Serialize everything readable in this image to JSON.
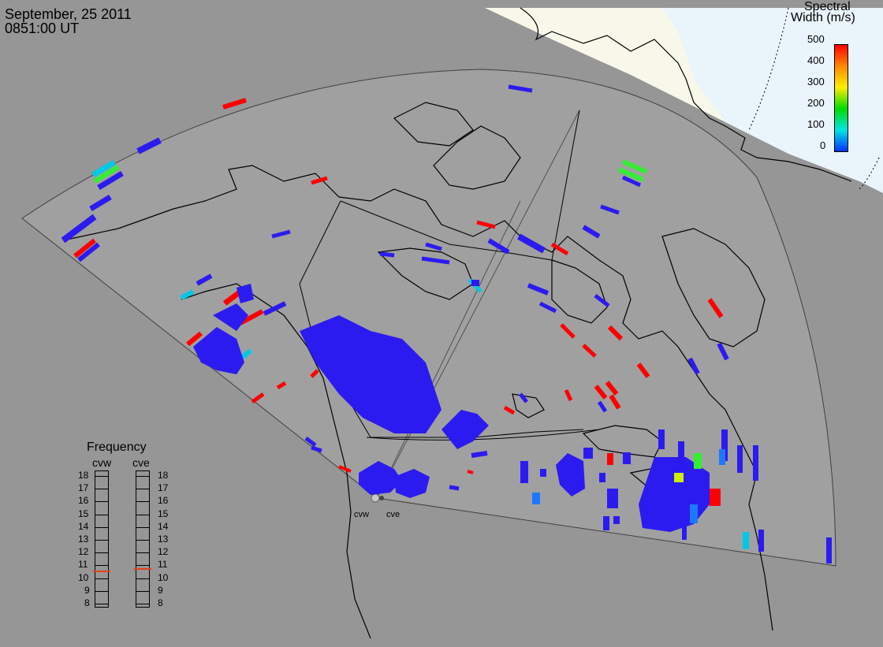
{
  "header": {
    "date": "September, 25 2011",
    "time": "0851:00 UT"
  },
  "colorbar": {
    "title_line1": "Spectral",
    "title_line2": "Width (m/s)",
    "ticks": [
      "500",
      "400",
      "300",
      "200",
      "100",
      "0"
    ],
    "colors": [
      "#ff0000",
      "#ff8800",
      "#ffee00",
      "#00dd00",
      "#00e5e5",
      "#0033ff"
    ]
  },
  "radars": [
    {
      "code": "cvw",
      "frequency_mhz": 10.6
    },
    {
      "code": "cve",
      "frequency_mhz": 10.8
    }
  ],
  "frequency_panel": {
    "title": "Frequency",
    "left_label": "cvw",
    "right_label": "cve",
    "scale": [
      "18",
      "17",
      "16",
      "15",
      "14",
      "13",
      "12",
      "11",
      "10",
      "9",
      "8"
    ]
  },
  "colors": {
    "background_gray": "#969696",
    "field_of_view_gray": "#a0a0a0",
    "daylight_cream": "#f8f8ea",
    "night_blue": "#eaf4fb",
    "echo_blue": "#2b1bf0"
  }
}
